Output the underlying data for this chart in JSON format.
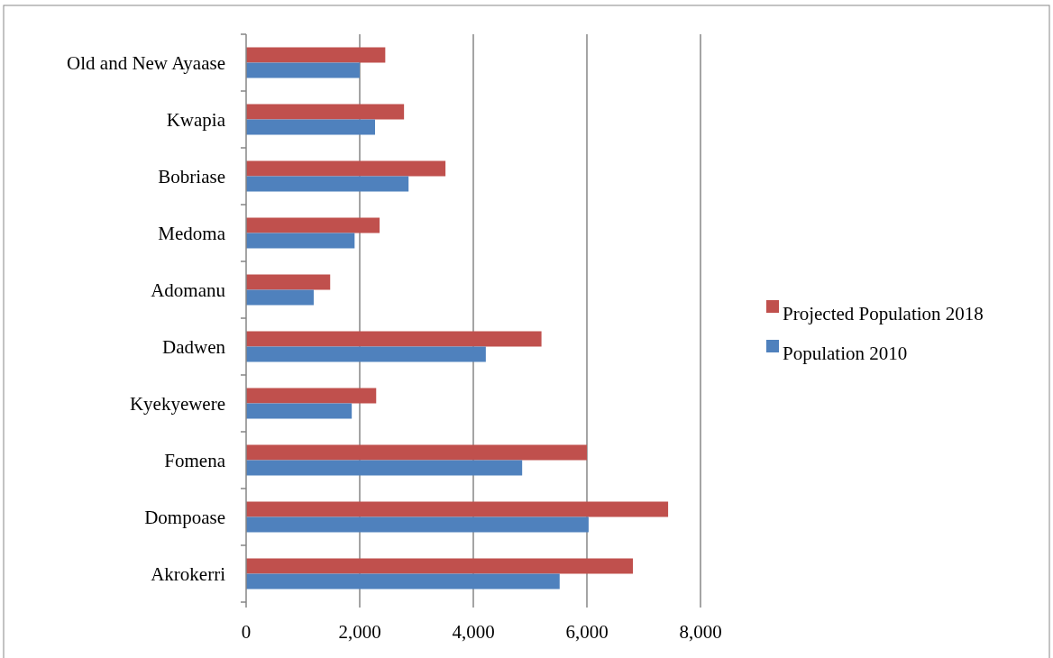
{
  "chart_data": {
    "type": "bar",
    "orientation": "horizontal",
    "categories": [
      "Old and New Ayaase",
      "Kwapia",
      "Bobriase",
      "Medoma",
      "Adomanu",
      "Dadwen",
      "Kyekyewere",
      "Fomena",
      "Dompoase",
      "Akrokerri"
    ],
    "series": [
      {
        "name": "Projected Population 2018",
        "color": "#c0504d",
        "values": [
          2450,
          2780,
          3510,
          2350,
          1480,
          5200,
          2290,
          6000,
          7430,
          6810
        ]
      },
      {
        "name": "Population 2010",
        "color": "#4f81bd",
        "values": [
          2000,
          2270,
          2860,
          1910,
          1190,
          4220,
          1860,
          4860,
          6030,
          5520
        ]
      }
    ],
    "xlim": [
      0,
      8000
    ],
    "xticks": [
      {
        "value": 0,
        "label": "0"
      },
      {
        "value": 2000,
        "label": "2,000"
      },
      {
        "value": 4000,
        "label": "4,000"
      },
      {
        "value": 6000,
        "label": "6,000"
      },
      {
        "value": 8000,
        "label": "8,000"
      }
    ],
    "grid": "x",
    "legend": "right"
  }
}
